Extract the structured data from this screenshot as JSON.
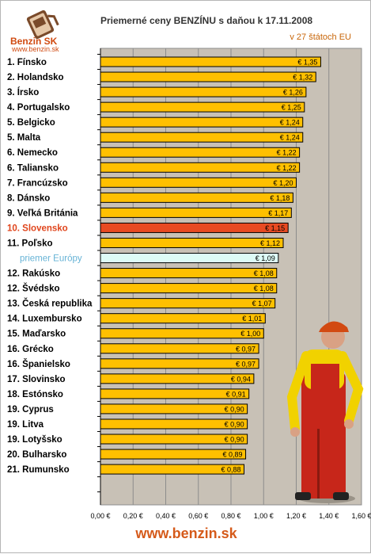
{
  "header": {
    "title": "Priemerné ceny BENZÍNU s daňou k 17.11.2008",
    "subtitle": "v 27 štátoch EU",
    "logo_text": "Benzin SK",
    "logo_url": "www.benzin.sk"
  },
  "footer": {
    "url": "www.benzin.sk"
  },
  "colors": {
    "bar": "#ffc000",
    "bar_highlight": "#e84a22",
    "bar_average": "#ddfbf6",
    "plot_background": "#c8c1b6",
    "footer": "#d55a1a",
    "mascot_shirt": "#f1d200",
    "mascot_overalls": "#c7261a"
  },
  "mascot": {
    "icon": "gas-station-attendant-figure"
  },
  "chart_data": {
    "type": "bar",
    "orientation": "horizontal",
    "title": "Priemerné ceny BENZÍNU s daňou k 17.11.2008",
    "subtitle": "v 27 štátoch EU",
    "xlim": [
      0,
      1.6
    ],
    "xticks": [
      "0,00 €",
      "0,20 €",
      "0,40 €",
      "0,60 €",
      "0,80 €",
      "1,00 €",
      "1,20 €",
      "1,40 €",
      "1,60 €"
    ],
    "grid": "vertical",
    "highlight": "10. Slovensko",
    "average": "priemer Európy",
    "categories": [
      "1. Fínsko",
      "2. Holandsko",
      "3. Írsko",
      "4. Portugalsko",
      "5. Belgicko",
      "5. Malta",
      "6. Nemecko",
      "6. Taliansko",
      "7. Francúzsko",
      "8. Dánsko",
      "9. Veľká Británia",
      "10. Slovensko",
      "11. Poľsko",
      "priemer Európy",
      "12. Rakúsko",
      "12. Švédsko",
      "13. Česká republika",
      "14. Luxembursko",
      "15. Maďarsko",
      "16. Grécko",
      "16. Španielsko",
      "17. Slovinsko",
      "18. Estónsko",
      "19. Cyprus",
      "19. Litva",
      "19. Lotyšsko",
      "20. Bulharsko",
      "21. Rumunsko"
    ],
    "values": [
      1.35,
      1.32,
      1.26,
      1.25,
      1.24,
      1.24,
      1.22,
      1.22,
      1.2,
      1.18,
      1.17,
      1.15,
      1.12,
      1.09,
      1.08,
      1.08,
      1.07,
      1.01,
      1.0,
      0.97,
      0.97,
      0.94,
      0.91,
      0.9,
      0.9,
      0.9,
      0.89,
      0.88
    ],
    "labels": [
      "€ 1,35",
      "€ 1,32",
      "€ 1,26",
      "€ 1,25",
      "€ 1,24",
      "€ 1,24",
      "€ 1,22",
      "€ 1,22",
      "€ 1,20",
      "€ 1,18",
      "€ 1,17",
      "€ 1,15",
      "€ 1,12",
      "€ 1,09",
      "€ 1,08",
      "€ 1,08",
      "€ 1,07",
      "€ 1,01",
      "€ 1,00",
      "€ 0,97",
      "€ 0,97",
      "€ 0,94",
      "€ 0,91",
      "€ 0,90",
      "€ 0,90",
      "€ 0,90",
      "€ 0,89",
      "€ 0,88"
    ]
  }
}
